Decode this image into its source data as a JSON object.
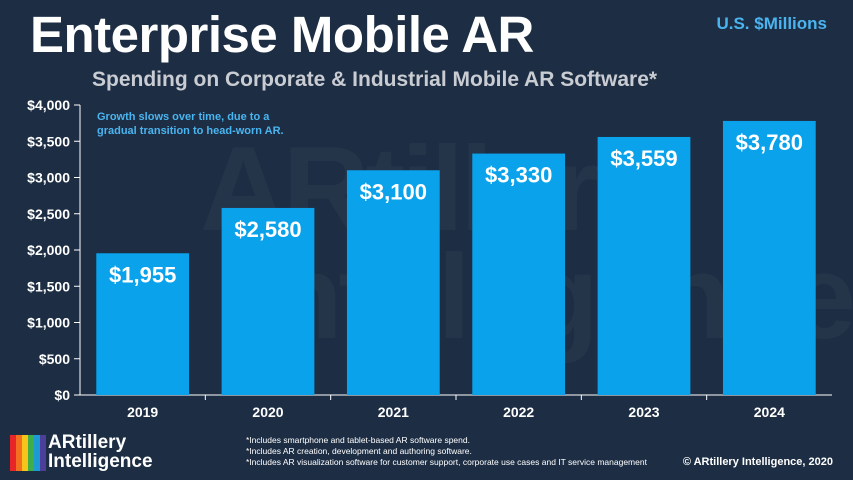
{
  "header": {
    "title": "Enterprise Mobile AR",
    "subtitle": "Spending on Corporate & Industrial Mobile AR Software*",
    "units": "U.S. $Millions"
  },
  "annotation": {
    "line1": "Growth slows over time, due to a",
    "line2": "gradual transition to head-worn AR."
  },
  "chart_data": {
    "type": "bar",
    "categories": [
      "2019",
      "2020",
      "2021",
      "2022",
      "2023",
      "2024"
    ],
    "values": [
      1955,
      2580,
      3100,
      3330,
      3559,
      3780
    ],
    "value_labels": [
      "$1,955",
      "$2,580",
      "$3,100",
      "$3,330",
      "$3,559",
      "$3,780"
    ],
    "ylim": [
      0,
      4000
    ],
    "yticks": [
      0,
      500,
      1000,
      1500,
      2000,
      2500,
      3000,
      3500,
      4000
    ],
    "ytick_labels": [
      "$0",
      "$500",
      "$1,000",
      "$1,500",
      "$2,000",
      "$2,500",
      "$3,000",
      "$3,500",
      "$4,000"
    ],
    "bar_color": "#0aa2ea",
    "grid": false,
    "legend": "none"
  },
  "footnotes": [
    "*Includes smartphone and tablet-based AR software spend.",
    "*Includes AR creation, development and authoring software.",
    "*Includes AR visualization software for customer support, corporate use cases and IT service management"
  ],
  "logo": {
    "line1": "ARtillery",
    "line2": "Intelligence",
    "stripe_colors": [
      "#e8262a",
      "#f37021",
      "#f7c41a",
      "#3fae49",
      "#1b9ad6",
      "#4b3f99"
    ]
  },
  "watermark": {
    "line1": "ARtillery",
    "line2": "Intelligence"
  },
  "copyright": "© ARtillery Intelligence, 2020",
  "colors": {
    "background": "#1d2e44",
    "accent": "#4ab4f0",
    "bar": "#0aa2ea",
    "axis": "#ffffff",
    "subtitle": "#c9ccd2"
  }
}
